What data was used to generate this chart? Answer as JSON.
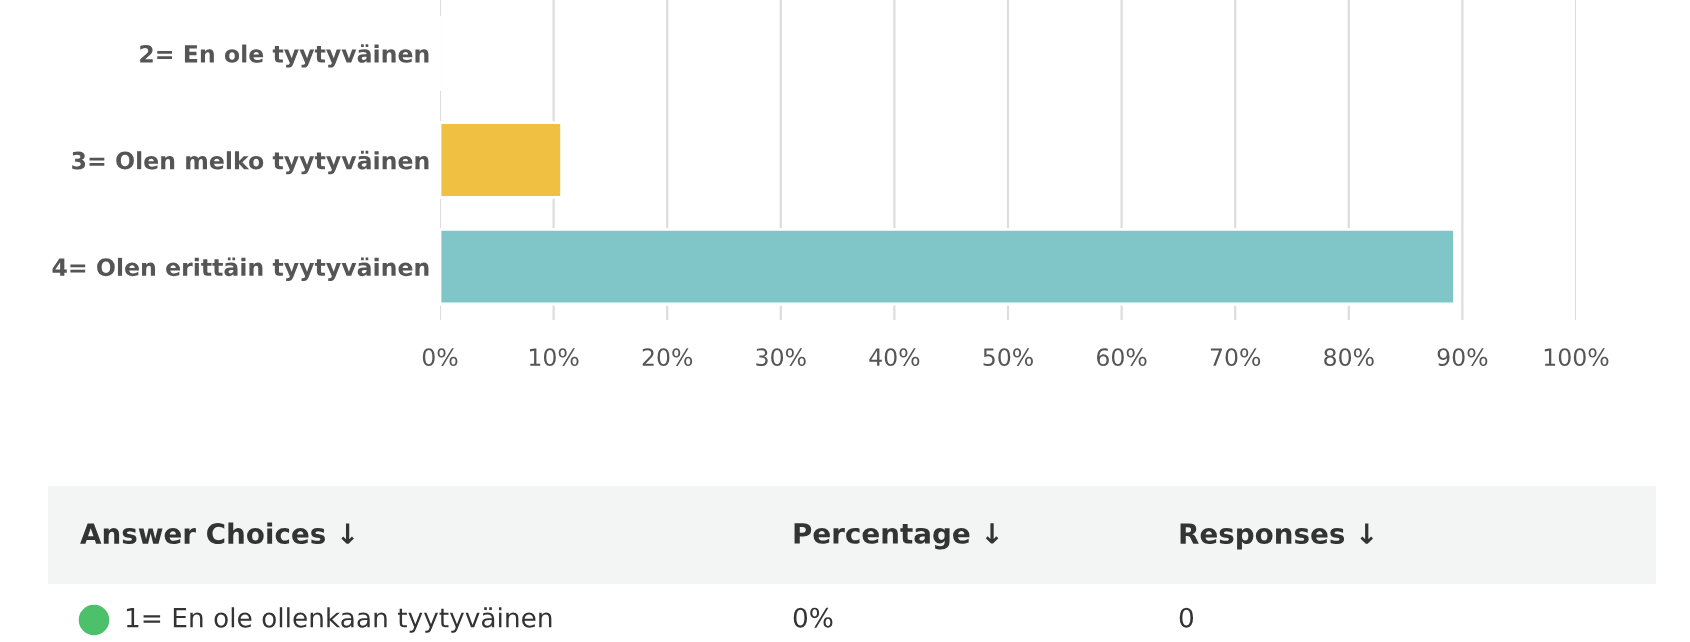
{
  "chart_data": {
    "type": "bar",
    "orientation": "horizontal",
    "categories": [
      "2= En ole tyytyväinen",
      "3= Olen melko tyytyväinen",
      "4= Olen erittäin tyytyväinen"
    ],
    "values": [
      0,
      10.7,
      89.3
    ],
    "colors": [
      null,
      "#f0c043",
      "#80c6c9"
    ],
    "xlim": [
      0,
      100
    ],
    "xticks": [
      {
        "value": 0,
        "label": "0%"
      },
      {
        "value": 10,
        "label": "10%"
      },
      {
        "value": 20,
        "label": "20%"
      },
      {
        "value": 30,
        "label": "30%"
      },
      {
        "value": 40,
        "label": "40%"
      },
      {
        "value": 50,
        "label": "50%"
      },
      {
        "value": 60,
        "label": "60%"
      },
      {
        "value": 70,
        "label": "70%"
      },
      {
        "value": 80,
        "label": "80%"
      },
      {
        "value": 90,
        "label": "90%"
      },
      {
        "value": 100,
        "label": "100%"
      }
    ],
    "grid": "x",
    "legend": false,
    "annotations": [
      "Answer Choices ↓",
      "Percentage ↓",
      "Responses ↓",
      "1= En ole ollenkaan tyytyväinen",
      "0%",
      "0"
    ]
  }
}
